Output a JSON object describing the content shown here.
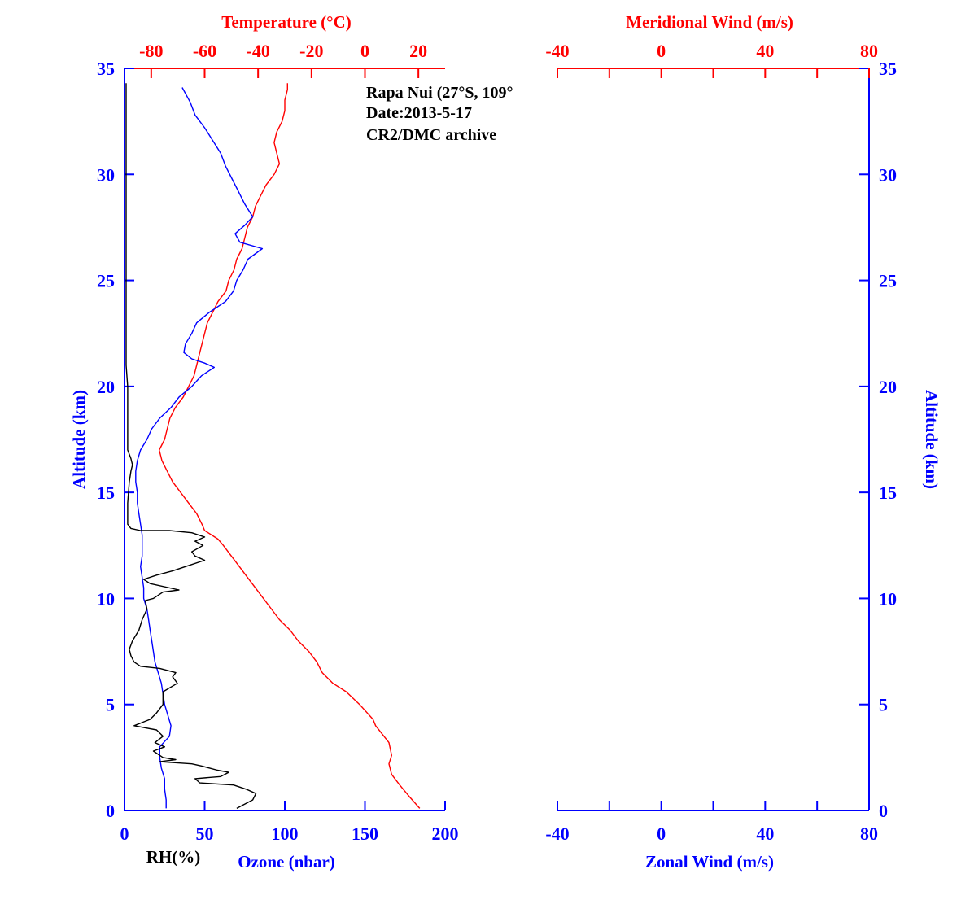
{
  "colors": {
    "temperature": "#ff0000",
    "ozone": "#0000ff",
    "rh": "#000000",
    "altitude_axis": "#0000ff",
    "wind_axis": "#0000ff",
    "meridional_axis": "#ff0000"
  },
  "annotations": {
    "line1": "Rapa Nui (27°S, 109°",
    "line2": "Date:2013-5-17",
    "line3": "CR2/DMC archive"
  },
  "chart_data": [
    {
      "type": "line",
      "panel": "left",
      "ylabel": "Altitude (km)",
      "ylabel_right": "Altitude (km)",
      "ylim": [
        0,
        35
      ],
      "yticks": [
        0,
        5,
        10,
        15,
        20,
        25,
        30,
        35
      ],
      "bottom_axis": {
        "label": "Ozone (nbar)",
        "extra_label": "RH(%)",
        "range": [
          0,
          200
        ],
        "ticks": [
          0,
          50,
          100,
          150,
          200
        ]
      },
      "top_axis": {
        "label": "Temperature (°C)",
        "range": [
          -90,
          30
        ],
        "ticks": [
          -80,
          -60,
          -40,
          -20,
          0,
          20
        ]
      },
      "grid": false,
      "series": [
        {
          "name": "Temperature",
          "axis": "top",
          "color": "#ff0000",
          "points": [
            [
              20.5,
              0.1
            ],
            [
              17,
              0.6
            ],
            [
              13,
              1.2
            ],
            [
              10,
              1.7
            ],
            [
              9,
              2.2
            ],
            [
              10,
              2.6
            ],
            [
              9,
              3.2
            ],
            [
              4,
              4.0
            ],
            [
              3,
              4.3
            ],
            [
              -2,
              5.0
            ],
            [
              -7,
              5.6
            ],
            [
              -12,
              6.0
            ],
            [
              -16,
              6.5
            ],
            [
              -18,
              7.0
            ],
            [
              -21,
              7.5
            ],
            [
              -25,
              8.0
            ],
            [
              -28,
              8.5
            ],
            [
              -32,
              9.0
            ],
            [
              -35,
              9.5
            ],
            [
              -38,
              10.0
            ],
            [
              -41,
              10.5
            ],
            [
              -44,
              11.0
            ],
            [
              -47,
              11.5
            ],
            [
              -50,
              12.0
            ],
            [
              -53,
              12.5
            ],
            [
              -55,
              12.8
            ],
            [
              -60,
              13.2
            ],
            [
              -61,
              13.5
            ],
            [
              -63,
              14.0
            ],
            [
              -66,
              14.5
            ],
            [
              -69,
              15.0
            ],
            [
              -72,
              15.5
            ],
            [
              -74,
              16.0
            ],
            [
              -76,
              16.5
            ],
            [
              -77,
              17.0
            ],
            [
              -75,
              17.5
            ],
            [
              -74,
              18.0
            ],
            [
              -73,
              18.5
            ],
            [
              -71,
              19.0
            ],
            [
              -68,
              19.5
            ],
            [
              -66,
              20.0
            ],
            [
              -64,
              20.5
            ],
            [
              -63,
              21.0
            ],
            [
              -62,
              21.5
            ],
            [
              -61,
              22.0
            ],
            [
              -60,
              22.5
            ],
            [
              -59,
              23.0
            ],
            [
              -57,
              23.5
            ],
            [
              -55,
              24.0
            ],
            [
              -52,
              24.5
            ],
            [
              -51,
              25.0
            ],
            [
              -49,
              25.5
            ],
            [
              -48,
              26.0
            ],
            [
              -46,
              26.5
            ],
            [
              -45,
              27.0
            ],
            [
              -44,
              27.5
            ],
            [
              -42,
              28.0
            ],
            [
              -41,
              28.5
            ],
            [
              -39,
              29.0
            ],
            [
              -37,
              29.5
            ],
            [
              -34,
              30.0
            ],
            [
              -32,
              30.5
            ],
            [
              -33,
              31.0
            ],
            [
              -34,
              31.5
            ],
            [
              -33,
              32.0
            ],
            [
              -31,
              32.5
            ],
            [
              -30,
              33.0
            ],
            [
              -30,
              33.5
            ],
            [
              -29,
              34.0
            ],
            [
              -29,
              34.3
            ]
          ]
        },
        {
          "name": "Ozone",
          "axis": "bottom",
          "color": "#0000ff",
          "points": [
            [
              26,
              0.1
            ],
            [
              26,
              0.5
            ],
            [
              25,
              1.0
            ],
            [
              25,
              1.5
            ],
            [
              23,
              2.0
            ],
            [
              22,
              2.5
            ],
            [
              22,
              3.0
            ],
            [
              28,
              3.5
            ],
            [
              29,
              4.0
            ],
            [
              27,
              4.5
            ],
            [
              25,
              5.0
            ],
            [
              24,
              5.5
            ],
            [
              23,
              6.0
            ],
            [
              21,
              6.5
            ],
            [
              19,
              7.0
            ],
            [
              18,
              7.5
            ],
            [
              17,
              8.0
            ],
            [
              16,
              8.5
            ],
            [
              15,
              9.0
            ],
            [
              14,
              9.5
            ],
            [
              12,
              10.0
            ],
            [
              12,
              10.5
            ],
            [
              11,
              11.0
            ],
            [
              10,
              11.5
            ],
            [
              11,
              12.0
            ],
            [
              11,
              12.5
            ],
            [
              11,
              13.0
            ],
            [
              10,
              13.5
            ],
            [
              9,
              14.0
            ],
            [
              8,
              14.5
            ],
            [
              8,
              15.0
            ],
            [
              7,
              15.5
            ],
            [
              7,
              16.0
            ],
            [
              8,
              16.5
            ],
            [
              10,
              17.0
            ],
            [
              14,
              17.5
            ],
            [
              17,
              18.0
            ],
            [
              22,
              18.5
            ],
            [
              29,
              19.0
            ],
            [
              34,
              19.5
            ],
            [
              42,
              20.0
            ],
            [
              48,
              20.5
            ],
            [
              56,
              20.9
            ],
            [
              50,
              21.1
            ],
            [
              42,
              21.3
            ],
            [
              37,
              21.6
            ],
            [
              38,
              22.0
            ],
            [
              42,
              22.5
            ],
            [
              45,
              23.0
            ],
            [
              53,
              23.5
            ],
            [
              63,
              24.0
            ],
            [
              68,
              24.5
            ],
            [
              70,
              25.0
            ],
            [
              74,
              25.5
            ],
            [
              77,
              26.0
            ],
            [
              86,
              26.5
            ],
            [
              72,
              26.8
            ],
            [
              69,
              27.2
            ],
            [
              75,
              27.6
            ],
            [
              80,
              28.0
            ],
            [
              75,
              28.6
            ],
            [
              71,
              29.2
            ],
            [
              67,
              29.8
            ],
            [
              63,
              30.4
            ],
            [
              60,
              31.0
            ],
            [
              55,
              31.6
            ],
            [
              50,
              32.2
            ],
            [
              44,
              32.8
            ],
            [
              41,
              33.4
            ],
            [
              36,
              34.1
            ]
          ]
        },
        {
          "name": "RH",
          "axis": "bottom",
          "color": "#000000",
          "points": [
            [
              70,
              0.1
            ],
            [
              80,
              0.5
            ],
            [
              82,
              0.8
            ],
            [
              76,
              1.0
            ],
            [
              68,
              1.2
            ],
            [
              47,
              1.3
            ],
            [
              44,
              1.5
            ],
            [
              60,
              1.6
            ],
            [
              65,
              1.8
            ],
            [
              58,
              1.9
            ],
            [
              48,
              2.1
            ],
            [
              42,
              2.2
            ],
            [
              22,
              2.3
            ],
            [
              32,
              2.4
            ],
            [
              24,
              2.5
            ],
            [
              18,
              2.8
            ],
            [
              25,
              3.0
            ],
            [
              19,
              3.2
            ],
            [
              24,
              3.5
            ],
            [
              20,
              3.8
            ],
            [
              13,
              3.9
            ],
            [
              6,
              4.0
            ],
            [
              16,
              4.3
            ],
            [
              20,
              4.6
            ],
            [
              24,
              5.0
            ],
            [
              24,
              5.6
            ],
            [
              33,
              6.0
            ],
            [
              30,
              6.3
            ],
            [
              32,
              6.5
            ],
            [
              22,
              6.7
            ],
            [
              10,
              6.8
            ],
            [
              6,
              7.0
            ],
            [
              4,
              7.3
            ],
            [
              3,
              7.6
            ],
            [
              5,
              8.0
            ],
            [
              9,
              8.5
            ],
            [
              11,
              9.0
            ],
            [
              14,
              9.5
            ],
            [
              13,
              9.9
            ],
            [
              18,
              10.0
            ],
            [
              24,
              10.3
            ],
            [
              34,
              10.4
            ],
            [
              16,
              10.7
            ],
            [
              12,
              10.9
            ],
            [
              20,
              11.1
            ],
            [
              30,
              11.3
            ],
            [
              38,
              11.5
            ],
            [
              50,
              11.8
            ],
            [
              44,
              12.0
            ],
            [
              42,
              12.2
            ],
            [
              49,
              12.5
            ],
            [
              44,
              12.7
            ],
            [
              50,
              12.9
            ],
            [
              42,
              13.1
            ],
            [
              28,
              13.2
            ],
            [
              10,
              13.2
            ],
            [
              4,
              13.3
            ],
            [
              2,
              13.5
            ],
            [
              2,
              14.5
            ],
            [
              3,
              15.5
            ],
            [
              4,
              16.0
            ],
            [
              5,
              16.3
            ],
            [
              4,
              16.6
            ],
            [
              2,
              17.0
            ],
            [
              2,
              20.0
            ],
            [
              1,
              21.0
            ],
            [
              1,
              30.0
            ],
            [
              1,
              34.3
            ]
          ]
        }
      ]
    },
    {
      "type": "line",
      "panel": "right",
      "ylabel": "Altitude (km)",
      "ylim": [
        0,
        35
      ],
      "yticks": [
        0,
        5,
        10,
        15,
        20,
        25,
        30,
        35
      ],
      "bottom_axis": {
        "label": "Zonal Wind (m/s)",
        "range": [
          -40,
          80
        ],
        "ticks": [
          -40,
          0,
          40,
          80
        ]
      },
      "top_axis": {
        "label": "Meridional Wind (m/s)",
        "range": [
          -40,
          80
        ],
        "ticks": [
          -40,
          0,
          40,
          80
        ]
      },
      "grid": false,
      "series": []
    }
  ]
}
